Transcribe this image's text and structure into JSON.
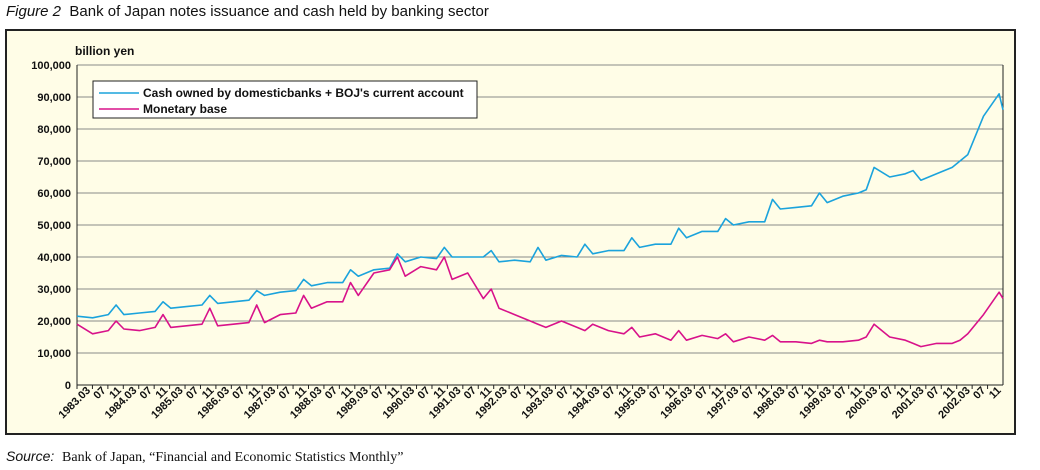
{
  "figure": {
    "label": "Figure 2",
    "title": "Bank of Japan notes issuance and cash held by banking sector"
  },
  "source": {
    "label": "Source:",
    "text": "Bank of Japan, “Financial and Economic Statistics Monthly”"
  },
  "colors": {
    "series1": "#1ba3dc",
    "series2": "#d8128a",
    "background": "#fffde7",
    "grid": "#8a8a8a"
  },
  "chart_data": {
    "type": "line",
    "title": "",
    "ylabel": "billion yen",
    "xlabel": "",
    "ylim": [
      0,
      100000
    ],
    "yticks": [
      0,
      10000,
      20000,
      30000,
      40000,
      50000,
      60000,
      70000,
      80000,
      90000,
      100000
    ],
    "ytick_labels": [
      "0",
      "10,000",
      "20,000",
      "30,000",
      "40,000",
      "50,000",
      "60,000",
      "70,000",
      "80,000",
      "90,000",
      "100,000"
    ],
    "grid": true,
    "legend_position": "top-left",
    "x_start": "1983.03",
    "x_end": "2002.12",
    "x_tick_labels": [
      "1983.03",
      "07",
      "11",
      "1984.03",
      "07",
      "11",
      "1985.03",
      "07",
      "11",
      "1986.03",
      "07",
      "11",
      "1987.03",
      "07",
      "11",
      "1988.03",
      "07",
      "11",
      "1989.03",
      "07",
      "11",
      "1990.03",
      "07",
      "11",
      "1991.03",
      "07",
      "11",
      "1992.03",
      "07",
      "11",
      "1993.03",
      "07",
      "11",
      "1994.03",
      "07",
      "11",
      "1995.03",
      "07",
      "11",
      "1996.03",
      "07",
      "11",
      "1997.03",
      "07",
      "11",
      "1998.03",
      "07",
      "11",
      "1999.03",
      "07",
      "11",
      "2000.03",
      "07",
      "11",
      "2001.03",
      "07",
      "11",
      "2002.03",
      "07",
      "11"
    ],
    "series": [
      {
        "name": "Cash owned by domesticbanks + BOJ's current account",
        "x": [
          "1983.03",
          "1983.07",
          "1983.11",
          "1984.01",
          "1984.03",
          "1984.07",
          "1984.11",
          "1985.01",
          "1985.03",
          "1985.07",
          "1985.11",
          "1986.01",
          "1986.03",
          "1986.07",
          "1986.11",
          "1987.01",
          "1987.03",
          "1987.07",
          "1987.11",
          "1988.01",
          "1988.03",
          "1988.07",
          "1988.11",
          "1989.01",
          "1989.03",
          "1989.07",
          "1989.11",
          "1990.01",
          "1990.03",
          "1990.07",
          "1990.11",
          "1991.01",
          "1991.03",
          "1991.07",
          "1991.11",
          "1992.01",
          "1992.03",
          "1992.07",
          "1992.11",
          "1993.01",
          "1993.03",
          "1993.07",
          "1993.11",
          "1994.01",
          "1994.03",
          "1994.07",
          "1994.11",
          "1995.01",
          "1995.03",
          "1995.07",
          "1995.11",
          "1996.01",
          "1996.03",
          "1996.07",
          "1996.11",
          "1997.01",
          "1997.03",
          "1997.07",
          "1997.11",
          "1998.01",
          "1998.03",
          "1998.07",
          "1998.11",
          "1999.01",
          "1999.03",
          "1999.07",
          "1999.11",
          "2000.01",
          "2000.03",
          "2000.07",
          "2000.11",
          "2001.01",
          "2001.03",
          "2001.07",
          "2001.11",
          "2002.01",
          "2002.03",
          "2002.07",
          "2002.11",
          "2002.12"
        ],
        "values": [
          21500,
          21000,
          22000,
          25000,
          22000,
          22500,
          23000,
          26000,
          24000,
          24500,
          25000,
          28000,
          25500,
          26000,
          26500,
          29500,
          28000,
          29000,
          29500,
          33000,
          31000,
          32000,
          32000,
          36000,
          34000,
          36000,
          36500,
          41000,
          38500,
          40000,
          39500,
          43000,
          40000,
          40000,
          40000,
          42000,
          38500,
          39000,
          38500,
          43000,
          39000,
          40500,
          40000,
          44000,
          41000,
          42000,
          42000,
          46000,
          43000,
          44000,
          44000,
          49000,
          46000,
          48000,
          48000,
          52000,
          50000,
          51000,
          51000,
          58000,
          55000,
          55500,
          56000,
          60000,
          57000,
          59000,
          60000,
          61000,
          68000,
          65000,
          66000,
          67000,
          64000,
          66000,
          68000,
          70000,
          72000,
          84000,
          91000,
          86000
        ]
      },
      {
        "name": "Monetary base",
        "x": [
          "1983.03",
          "1983.07",
          "1983.11",
          "1984.01",
          "1984.03",
          "1984.07",
          "1984.11",
          "1985.01",
          "1985.03",
          "1985.07",
          "1985.11",
          "1986.01",
          "1986.03",
          "1986.07",
          "1986.11",
          "1987.01",
          "1987.03",
          "1987.07",
          "1987.11",
          "1988.01",
          "1988.03",
          "1988.07",
          "1988.11",
          "1989.01",
          "1989.03",
          "1989.07",
          "1989.11",
          "1990.01",
          "1990.03",
          "1990.07",
          "1990.11",
          "1991.01",
          "1991.03",
          "1991.07",
          "1991.11",
          "1992.01",
          "1992.03",
          "1992.07",
          "1992.11",
          "1993.01",
          "1993.03",
          "1993.07",
          "1993.11",
          "1994.01",
          "1994.03",
          "1994.07",
          "1994.11",
          "1995.01",
          "1995.03",
          "1995.07",
          "1995.11",
          "1996.01",
          "1996.03",
          "1996.07",
          "1996.11",
          "1997.01",
          "1997.03",
          "1997.07",
          "1997.11",
          "1998.01",
          "1998.03",
          "1998.07",
          "1998.11",
          "1999.01",
          "1999.03",
          "1999.07",
          "1999.11",
          "2000.01",
          "2000.03",
          "2000.07",
          "2000.11",
          "2001.01",
          "2001.03",
          "2001.07",
          "2001.11",
          "2002.01",
          "2002.03",
          "2002.07",
          "2002.11",
          "2002.12"
        ],
        "values": [
          19000,
          16000,
          17000,
          20000,
          17500,
          17000,
          18000,
          22000,
          18000,
          18500,
          19000,
          24000,
          18500,
          19000,
          19500,
          25000,
          19500,
          22000,
          22500,
          28000,
          24000,
          26000,
          26000,
          32000,
          28000,
          35000,
          36000,
          40000,
          34000,
          37000,
          36000,
          40000,
          33000,
          35000,
          27000,
          30000,
          24000,
          22000,
          20000,
          19000,
          18000,
          20000,
          18000,
          17000,
          19000,
          17000,
          16000,
          18000,
          15000,
          16000,
          14000,
          17000,
          14000,
          15500,
          14500,
          16000,
          13500,
          15000,
          14000,
          15500,
          13500,
          13500,
          13000,
          14000,
          13500,
          13500,
          14000,
          15000,
          19000,
          15000,
          14000,
          13000,
          12000,
          13000,
          13000,
          14000,
          16000,
          22000,
          29000,
          27000
        ]
      }
    ]
  }
}
